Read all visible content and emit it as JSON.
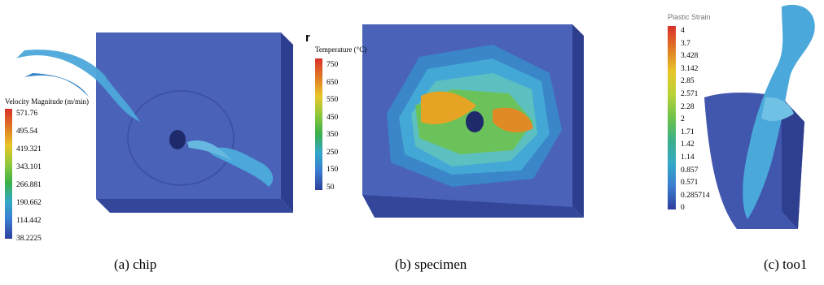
{
  "panels": [
    {
      "caption": "(a) chip",
      "legend": {
        "title": "Velocity Magnitude (m/min)",
        "ticks": [
          "571.76",
          "495.54",
          "419.321",
          "343.101",
          "266.881",
          "190.662",
          "114.442",
          "38.2225"
        ]
      }
    },
    {
      "caption": "(b) specimen",
      "stray_mark": "r",
      "legend": {
        "title": "Temperature (°C)",
        "ticks": [
          "750",
          "650",
          "550",
          "450",
          "350",
          "250",
          "150",
          "50"
        ]
      }
    },
    {
      "caption": "(c) too1",
      "legend": {
        "title": "Plastic Strain",
        "ticks": [
          "4",
          "3.7",
          "3.428",
          "3.142",
          "2.85",
          "2.571",
          "2.28",
          "2",
          "1.71",
          "1.42",
          "1.14",
          "0.857",
          "0.571",
          "0.285714",
          "0"
        ]
      }
    }
  ],
  "colors": {
    "block": "#4660b4",
    "block_side": "#2f3f8f",
    "chip": "#4aa8d8",
    "hot": "#e8a020",
    "warm": "#68c050"
  }
}
